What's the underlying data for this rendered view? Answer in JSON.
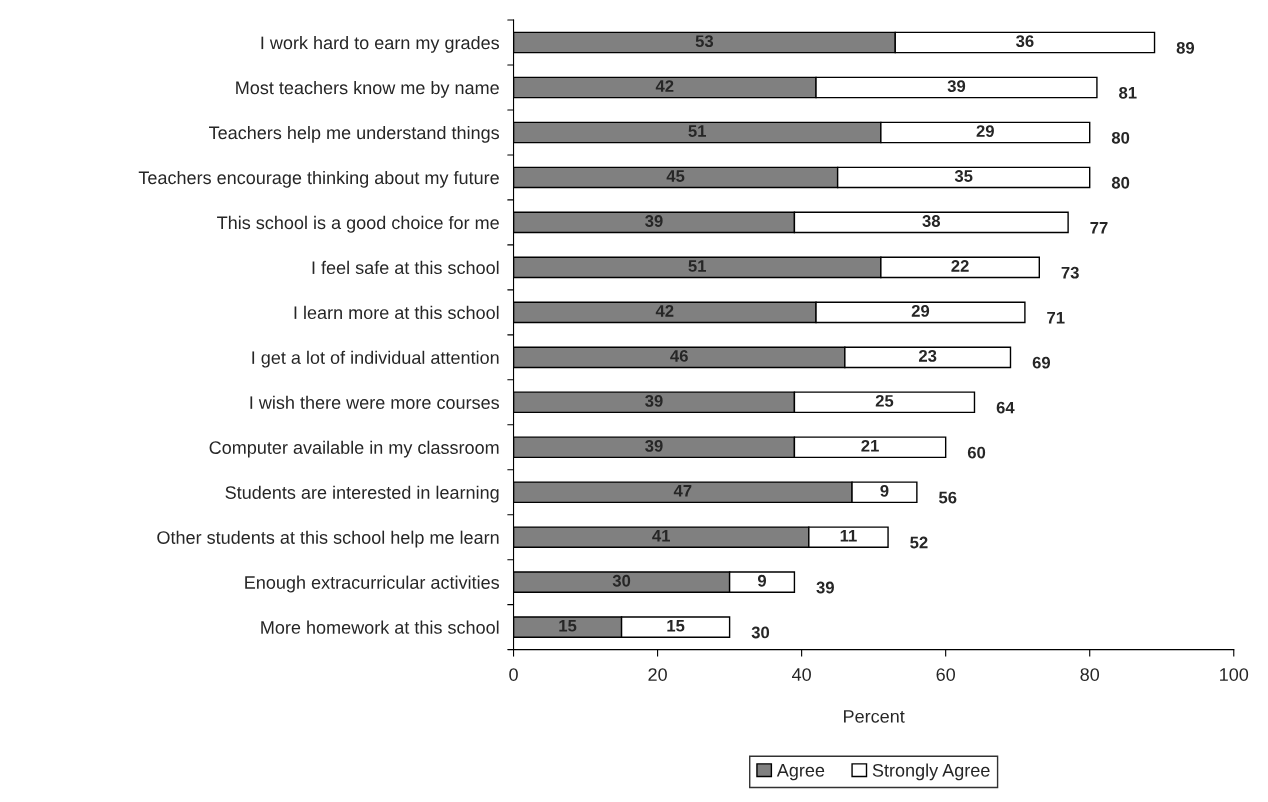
{
  "chart_data": {
    "type": "bar",
    "orientation": "horizontal",
    "stacked": true,
    "xlabel": "Percent",
    "categories": [
      "I work hard to earn my grades",
      "Most teachers know me by name",
      "Teachers help me understand things",
      "Teachers encourage thinking about my future",
      "This school is a good choice for me",
      "I feel safe at this school",
      "I learn more at this school",
      "I get a lot of individual attention",
      "I wish there were more courses",
      "Computer available in my classroom",
      "Students are interested in learning",
      "Other students at this school help me learn",
      "Enough extracurricular activities",
      "More homework at this school"
    ],
    "series": [
      {
        "name": "Agree",
        "color": "#808080",
        "values": [
          53,
          42,
          51,
          45,
          39,
          51,
          42,
          46,
          39,
          39,
          47,
          41,
          30,
          15
        ]
      },
      {
        "name": "Strongly Agree",
        "color": "#ffffff",
        "values": [
          36,
          39,
          29,
          35,
          38,
          22,
          29,
          23,
          25,
          21,
          9,
          11,
          9,
          15
        ]
      }
    ],
    "totals": [
      "89",
      "81",
      "80",
      "80",
      "77",
      "73",
      "71",
      "69",
      "64",
      "60",
      "56",
      "52",
      "39",
      "30"
    ],
    "data_labels": true,
    "xlim": [
      0,
      100
    ],
    "xticks": [
      0,
      20,
      40,
      60,
      80,
      100
    ],
    "grid": false,
    "legend": "bottom"
  }
}
